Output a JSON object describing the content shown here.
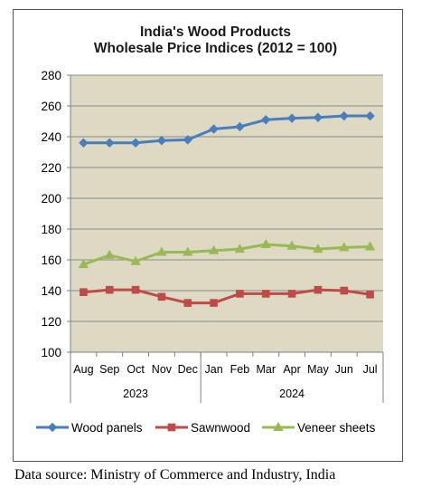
{
  "chart_data": {
    "type": "line",
    "title": [
      "India's Wood Products",
      "Wholesale Price Indices (2012 = 100)"
    ],
    "months": [
      "Aug",
      "Sep",
      "Oct",
      "Nov",
      "Dec",
      "Jan",
      "Feb",
      "Mar",
      "Apr",
      "May",
      "Jun",
      "Jul"
    ],
    "year_groups": [
      {
        "label": "2023",
        "span": [
          0,
          4
        ]
      },
      {
        "label": "2024",
        "span": [
          5,
          11
        ]
      }
    ],
    "ylim": [
      100,
      280
    ],
    "yticks": [
      100,
      120,
      140,
      160,
      180,
      200,
      220,
      240,
      260,
      280
    ],
    "grid": true,
    "legend_position": "bottom",
    "series": [
      {
        "name": "Wood panels",
        "color": "#4a7ebb",
        "marker": "diamond",
        "values": [
          236,
          236,
          236,
          237.5,
          238,
          245,
          246.5,
          251,
          252,
          252.5,
          253.5,
          253.5
        ]
      },
      {
        "name": "Sawnwood",
        "color": "#be4b48",
        "marker": "square",
        "values": [
          139,
          140.5,
          140.5,
          136,
          132,
          132,
          138,
          138,
          138,
          140.5,
          140,
          137.5
        ]
      },
      {
        "name": "Veneer sheets",
        "color": "#98b954",
        "marker": "triangle",
        "values": [
          157,
          163,
          159,
          165,
          165,
          166,
          167,
          170,
          169,
          167,
          168,
          168.5
        ]
      }
    ]
  },
  "source_note": "Data source: Ministry of Commerce and Industry, India",
  "colors": {
    "plot_bg": "#ddd9c3",
    "grid": "#8c8c8c",
    "axis": "#7f7f7f"
  }
}
